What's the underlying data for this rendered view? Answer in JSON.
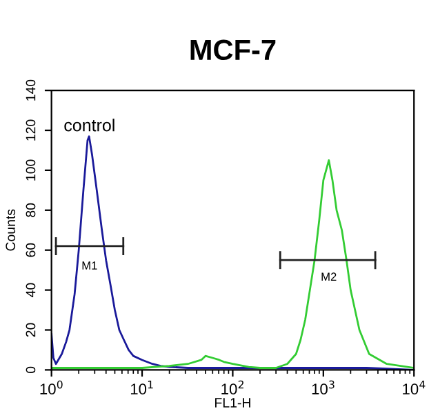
{
  "chart_data": {
    "type": "line",
    "title": "MCF-7",
    "xlabel": "FL1-H",
    "ylabel": "Counts",
    "log": "x",
    "xlim": [
      1,
      10000
    ],
    "ylim": [
      0,
      140
    ],
    "xticks": [
      {
        "value": 1,
        "label": "10$^{0}$"
      },
      {
        "value": 10,
        "label": "10$^{1}$"
      },
      {
        "value": 100,
        "label": "10$^{2}$"
      },
      {
        "value": 1000,
        "label": "10$^{3}$"
      },
      {
        "value": 10000,
        "label": "10$^{4}$"
      }
    ],
    "yticks": [
      0,
      20,
      40,
      60,
      80,
      100,
      120,
      140
    ],
    "grid": false,
    "annotations": [
      "control",
      "M1",
      "M2"
    ],
    "series": [
      {
        "color": "#1a1a9a",
        "x": [
          1,
          1.05,
          1.12,
          1.3,
          1.45,
          1.58,
          1.8,
          2.0,
          2.25,
          2.5,
          2.6,
          2.8,
          3.16,
          3.6,
          4.0,
          4.5,
          5.0,
          5.6,
          6.3,
          7.1,
          8,
          10,
          13,
          16,
          20,
          32,
          50,
          100,
          200,
          500,
          1000,
          3000,
          10000
        ],
        "values": [
          18,
          6,
          3,
          8,
          14,
          20,
          38,
          60,
          90,
          115,
          117,
          108,
          90,
          70,
          55,
          42,
          30,
          20,
          15,
          10,
          7,
          5,
          3,
          2,
          1.5,
          1,
          1,
          1,
          1,
          1,
          1,
          1,
          0
        ]
      },
      {
        "color": "#33cc33",
        "x": [
          1,
          3,
          10,
          20,
          32,
          45,
          50,
          60,
          71,
          80,
          100,
          150,
          200,
          300,
          400,
          500,
          560,
          630,
          710,
          800,
          900,
          1000,
          1150,
          1260,
          1400,
          1600,
          1800,
          2000,
          2500,
          3200,
          5000,
          10000
        ],
        "values": [
          1,
          1,
          1,
          2,
          3,
          5,
          7,
          6,
          5,
          4,
          3,
          1.5,
          1,
          1,
          3,
          8,
          15,
          25,
          40,
          55,
          75,
          95,
          105,
          95,
          80,
          70,
          55,
          40,
          20,
          8,
          3,
          1
        ]
      },
      {
        "color": "#222222",
        "x": [
          1.12,
          6.2
        ],
        "values": [
          62,
          62
        ]
      },
      {
        "color": "#222222",
        "x": [
          334,
          3740
        ],
        "values": [
          55,
          55
        ]
      }
    ]
  }
}
